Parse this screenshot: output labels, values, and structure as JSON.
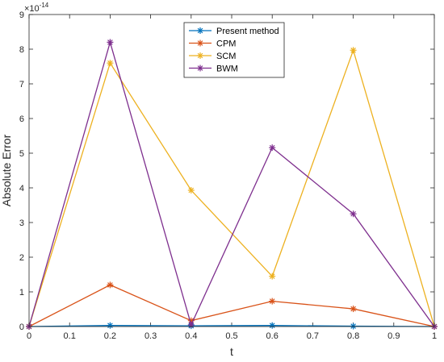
{
  "chart_data": {
    "type": "line",
    "title": "",
    "xlabel": "t",
    "ylabel": "Absolute Error",
    "exponent_label": "×10",
    "exponent_value": "-14",
    "xlim": [
      0,
      1
    ],
    "ylim": [
      0,
      9
    ],
    "xticks": [
      0,
      0.1,
      0.2,
      0.3,
      0.4,
      0.5,
      0.6,
      0.7,
      0.8,
      0.9,
      1
    ],
    "xtick_labels": [
      "0",
      "0.1",
      "0.2",
      "0.3",
      "0.4",
      "0.5",
      "0.6",
      "0.7",
      "0.8",
      "0.9",
      "1"
    ],
    "yticks": [
      0,
      1,
      2,
      3,
      4,
      5,
      6,
      7,
      8,
      9
    ],
    "ytick_labels": [
      "0",
      "1",
      "2",
      "3",
      "4",
      "5",
      "6",
      "7",
      "8",
      "9"
    ],
    "x": [
      0,
      0.2,
      0.4,
      0.6,
      0.8,
      1
    ],
    "series": [
      {
        "name": "Present method",
        "color": "#0072BD",
        "values": [
          0,
          0.03,
          0.02,
          0.03,
          0.01,
          0
        ]
      },
      {
        "name": "CPM",
        "color": "#D95319",
        "values": [
          0,
          1.2,
          0.17,
          0.73,
          0.51,
          0
        ]
      },
      {
        "name": "SCM",
        "color": "#EDB120",
        "values": [
          0,
          7.6,
          3.93,
          1.45,
          7.97,
          0
        ]
      },
      {
        "name": "BWM",
        "color": "#7E2F8E",
        "values": [
          0,
          8.2,
          0.05,
          5.16,
          3.25,
          0
        ]
      }
    ],
    "legend_position": "top-center",
    "grid": false
  }
}
